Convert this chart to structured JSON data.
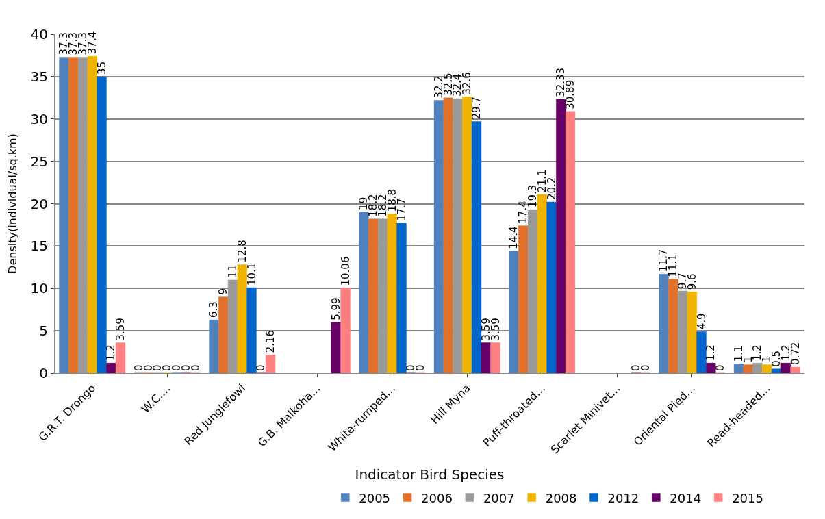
{
  "chart_data": {
    "type": "bar",
    "xlabel": "Indicator Bird Species",
    "ylabel": "Density(individual/sq.km)",
    "categories": [
      "G.R.T. Drongo",
      "W.C.…",
      "Red Junglefowl",
      "G.B. Malkoha…",
      "White-rumped…",
      "Hill Myna",
      "Puff-throated…",
      "Scarlet Minivet…",
      "Oriental Pied…",
      "Read-headed…"
    ],
    "series": [
      {
        "name": "2005",
        "color": "#4f81bd",
        "values": [
          37.3,
          0,
          6.3,
          null,
          19,
          32.2,
          14.4,
          null,
          11.7,
          1.1
        ]
      },
      {
        "name": "2006",
        "color": "#e0702a",
        "values": [
          37.3,
          0,
          9,
          null,
          18.2,
          32.5,
          17.4,
          null,
          11.1,
          1
        ]
      },
      {
        "name": "2007",
        "color": "#9a9a9a",
        "values": [
          37.3,
          0,
          11,
          null,
          18.2,
          32.4,
          19.3,
          null,
          9.7,
          1.2
        ]
      },
      {
        "name": "2008",
        "color": "#f0b400",
        "values": [
          37.4,
          0,
          12.8,
          null,
          18.8,
          32.6,
          21.1,
          null,
          9.6,
          1
        ]
      },
      {
        "name": "2012",
        "color": "#0066cc",
        "values": [
          35,
          0,
          10.1,
          null,
          17.7,
          29.7,
          20.2,
          null,
          4.9,
          0.5
        ]
      },
      {
        "name": "2014",
        "color": "#660066",
        "values": [
          1.2,
          0,
          0,
          5.99,
          0,
          3.59,
          32.33,
          0,
          1.2,
          1.2
        ]
      },
      {
        "name": "2015",
        "color": "#ff8080",
        "values": [
          3.59,
          0,
          2.16,
          10.06,
          0,
          3.59,
          30.89,
          0,
          0,
          0.72
        ]
      }
    ],
    "ylim": [
      0,
      40
    ],
    "yticks": [
      0,
      5,
      10,
      15,
      20,
      25,
      30,
      35,
      40
    ],
    "grid": "y",
    "legend": "bottom",
    "data_labels": true
  }
}
